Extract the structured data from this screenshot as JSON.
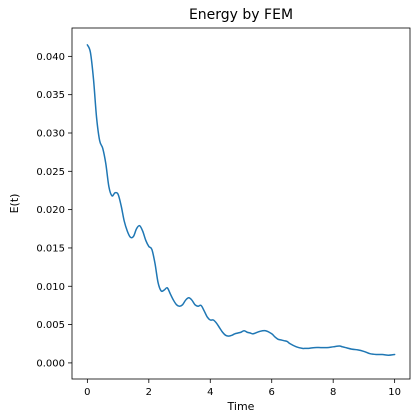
{
  "chart_data": {
    "type": "line",
    "title": "Energy by FEM",
    "xlabel": "Time",
    "ylabel": "E(t)",
    "xlim": [
      -0.5,
      10.5
    ],
    "ylim": [
      -0.0021,
      0.0437
    ],
    "grid": false,
    "legend": "none",
    "x_ticks": [
      {
        "value": 0,
        "label": "0"
      },
      {
        "value": 2,
        "label": "2"
      },
      {
        "value": 4,
        "label": "4"
      },
      {
        "value": 6,
        "label": "6"
      },
      {
        "value": 8,
        "label": "8"
      },
      {
        "value": 10,
        "label": "10"
      }
    ],
    "y_ticks": [
      {
        "value": 0.0,
        "label": "0.000"
      },
      {
        "value": 0.005,
        "label": "0.005"
      },
      {
        "value": 0.01,
        "label": "0.010"
      },
      {
        "value": 0.015,
        "label": "0.015"
      },
      {
        "value": 0.02,
        "label": "0.020"
      },
      {
        "value": 0.025,
        "label": "0.025"
      },
      {
        "value": 0.03,
        "label": "0.030"
      },
      {
        "value": 0.035,
        "label": "0.035"
      },
      {
        "value": 0.04,
        "label": "0.040"
      }
    ],
    "series": [
      {
        "color": "#1f77b4",
        "x": [
          0.0,
          0.1,
          0.2,
          0.3,
          0.4,
          0.5,
          0.6,
          0.7,
          0.8,
          0.9,
          1.0,
          1.1,
          1.2,
          1.3,
          1.4,
          1.5,
          1.6,
          1.7,
          1.8,
          1.9,
          2.0,
          2.1,
          2.2,
          2.3,
          2.4,
          2.5,
          2.6,
          2.7,
          2.8,
          2.9,
          3.0,
          3.1,
          3.2,
          3.3,
          3.4,
          3.5,
          3.6,
          3.7,
          3.8,
          3.9,
          4.0,
          4.1,
          4.2,
          4.3,
          4.4,
          4.5,
          4.6,
          4.7,
          4.8,
          4.9,
          5.0,
          5.1,
          5.2,
          5.3,
          5.4,
          5.6,
          5.8,
          6.0,
          6.1,
          6.2,
          6.3,
          6.4,
          6.5,
          6.6,
          6.8,
          7.0,
          7.1,
          7.2,
          7.4,
          7.6,
          7.8,
          8.0,
          8.2,
          8.3,
          8.4,
          8.6,
          8.8,
          9.0,
          9.2,
          9.4,
          9.6,
          9.8,
          10.0
        ],
        "y": [
          0.0415,
          0.0405,
          0.037,
          0.032,
          0.029,
          0.028,
          0.026,
          0.023,
          0.0218,
          0.0222,
          0.022,
          0.0205,
          0.0185,
          0.0172,
          0.0164,
          0.0165,
          0.0175,
          0.0179,
          0.0172,
          0.016,
          0.0152,
          0.0148,
          0.013,
          0.0105,
          0.0094,
          0.0095,
          0.0098,
          0.009,
          0.0082,
          0.0076,
          0.0074,
          0.0076,
          0.0082,
          0.0085,
          0.0082,
          0.0076,
          0.0074,
          0.0075,
          0.0068,
          0.006,
          0.0056,
          0.0056,
          0.0052,
          0.0046,
          0.004,
          0.0036,
          0.0035,
          0.0036,
          0.0038,
          0.0039,
          0.004,
          0.0042,
          0.004,
          0.0039,
          0.0038,
          0.0041,
          0.0042,
          0.0038,
          0.0034,
          0.0031,
          0.003,
          0.0029,
          0.0028,
          0.0025,
          0.0021,
          0.0019,
          0.0019,
          0.0019,
          0.002,
          0.002,
          0.002,
          0.0021,
          0.0022,
          0.0021,
          0.002,
          0.0018,
          0.0017,
          0.0015,
          0.0012,
          0.0011,
          0.0011,
          0.001,
          0.0011
        ]
      }
    ]
  }
}
